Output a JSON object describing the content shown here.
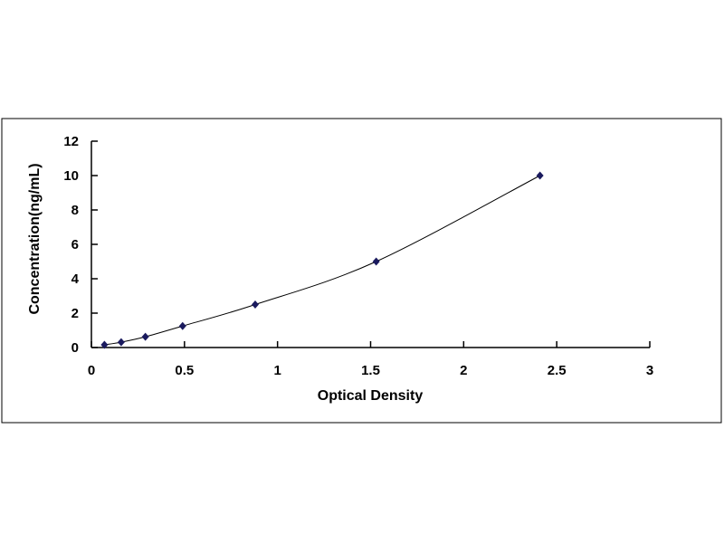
{
  "chart_data": {
    "type": "scatter",
    "xlabel": "Optical Density",
    "ylabel": "Concentration(ng/mL)",
    "xlim": [
      0,
      3
    ],
    "ylim": [
      0,
      12
    ],
    "xticks": [
      "0",
      "0.5",
      "1",
      "1.5",
      "2",
      "2.5",
      "3"
    ],
    "yticks": [
      "0",
      "2",
      "4",
      "6",
      "8",
      "10",
      "12"
    ],
    "grid": false,
    "legend": "none",
    "trendline": "smooth curve",
    "marker_color": "#1a1a5e",
    "line_color": "#000000",
    "points": [
      {
        "x": 0.07,
        "y": 0.156
      },
      {
        "x": 0.16,
        "y": 0.312
      },
      {
        "x": 0.29,
        "y": 0.625
      },
      {
        "x": 0.49,
        "y": 1.25
      },
      {
        "x": 0.88,
        "y": 2.5
      },
      {
        "x": 1.53,
        "y": 5
      },
      {
        "x": 2.41,
        "y": 10
      }
    ]
  }
}
